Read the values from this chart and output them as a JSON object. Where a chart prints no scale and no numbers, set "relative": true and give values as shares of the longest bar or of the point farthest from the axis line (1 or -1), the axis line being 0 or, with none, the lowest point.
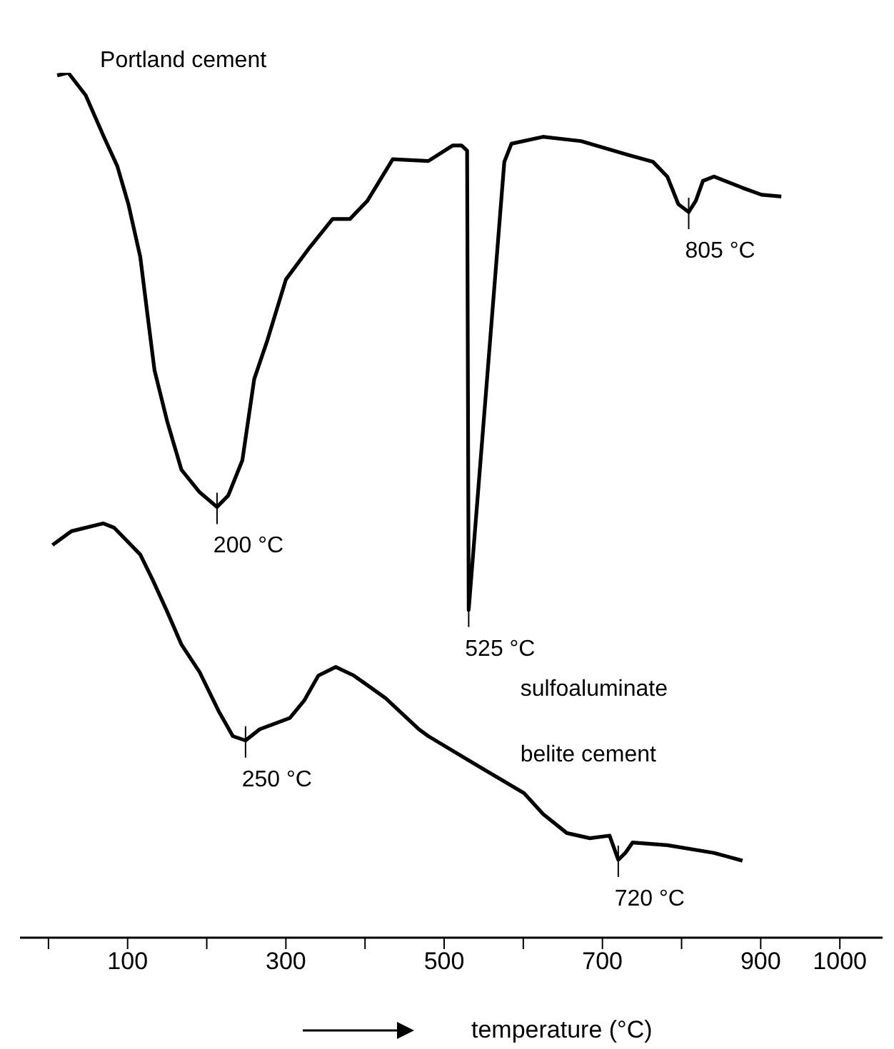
{
  "chart_data": {
    "type": "line",
    "relative": true,
    "xlabel": "temperature (°C)",
    "xlim": [
      -36,
      1054
    ],
    "xticks": [
      {
        "value": 0,
        "label": null
      },
      100,
      {
        "value": 200,
        "label": null
      },
      300,
      {
        "value": 400,
        "label": null
      },
      500,
      {
        "value": 600,
        "label": null
      },
      700,
      {
        "value": 800,
        "label": null
      },
      900,
      1000
    ],
    "series": [
      {
        "name": "Portland cement",
        "color": "#000000",
        "x": [
          11,
          25,
          47,
          70,
          87,
          101,
          116,
          125,
          134,
          150,
          168,
          191,
          213,
          227,
          245,
          260,
          276,
          300,
          330,
          359,
          381,
          403,
          435,
          480,
          511,
          522,
          529,
          531,
          576,
          585,
          625,
          673,
          733,
          764,
          782,
          796,
          809,
          818,
          827,
          841,
          877,
          901,
          926
        ],
        "values": [
          0.997,
          1.0,
          0.974,
          0.926,
          0.892,
          0.848,
          0.787,
          0.721,
          0.656,
          0.597,
          0.541,
          0.515,
          0.498,
          0.511,
          0.552,
          0.646,
          0.689,
          0.761,
          0.798,
          0.831,
          0.831,
          0.852,
          0.9,
          0.898,
          0.916,
          0.916,
          0.91,
          0.379,
          0.897,
          0.918,
          0.926,
          0.921,
          0.905,
          0.897,
          0.88,
          0.848,
          0.839,
          0.852,
          0.875,
          0.88,
          0.867,
          0.859,
          0.857
        ]
      },
      {
        "name": "sulfoaluminate belite cement",
        "color": "#000000",
        "x": [
          5,
          29,
          69,
          83,
          116,
          132,
          150,
          168,
          191,
          215,
          233,
          249,
          267,
          305,
          323,
          341,
          363,
          386,
          426,
          468,
          480,
          540,
          601,
          625,
          655,
          684,
          709,
          720,
          729,
          738,
          782,
          841,
          877
        ],
        "values": [
          0.454,
          0.47,
          0.479,
          0.474,
          0.443,
          0.413,
          0.377,
          0.339,
          0.307,
          0.262,
          0.233,
          0.228,
          0.241,
          0.254,
          0.274,
          0.303,
          0.313,
          0.303,
          0.277,
          0.241,
          0.233,
          0.2,
          0.167,
          0.143,
          0.121,
          0.115,
          0.118,
          0.09,
          0.098,
          0.11,
          0.107,
          0.098,
          0.089
        ]
      }
    ],
    "annotations": [
      {
        "text": "200 °C",
        "x": 213,
        "y": 0.498
      },
      {
        "text": "525 °C",
        "x": 531,
        "y": 0.379
      },
      {
        "text": "805 °C",
        "x": 809,
        "y": 0.839
      },
      {
        "text": "250 °C",
        "x": 249,
        "y": 0.228
      },
      {
        "text": "720 °C",
        "x": 720,
        "y": 0.09
      }
    ]
  }
}
